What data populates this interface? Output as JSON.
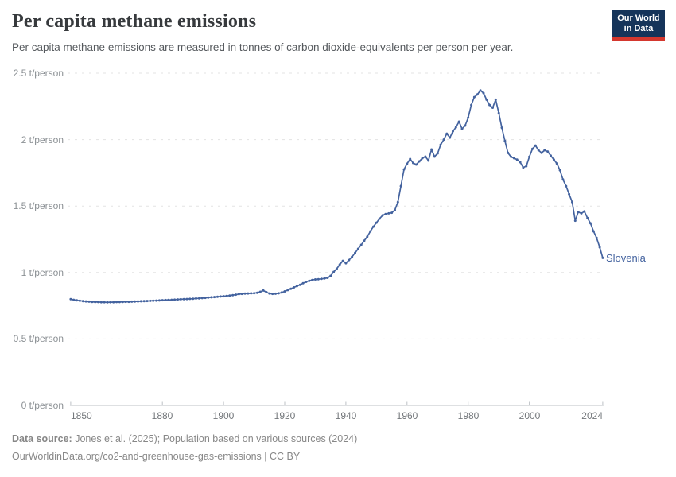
{
  "header": {
    "title": "Per capita methane emissions",
    "subtitle": "Per capita methane emissions are measured in tonnes of carbon dioxide-equivalents per person per year.",
    "logo": {
      "line1": "Our World",
      "line2": "in Data"
    }
  },
  "chart_data": {
    "type": "line",
    "title": "Per capita methane emissions",
    "unit": "t/person",
    "x_start": 1850,
    "x_end": 2024,
    "xlim": [
      1850,
      2024
    ],
    "ylim": [
      0,
      2.5
    ],
    "grid": "horizontal-dashed",
    "legend_position": "end-of-line-label",
    "y_ticks": [
      {
        "value": 0,
        "label": "0 t/person"
      },
      {
        "value": 0.5,
        "label": "0.5 t/person"
      },
      {
        "value": 1,
        "label": "1 t/person"
      },
      {
        "value": 1.5,
        "label": "1.5 t/person"
      },
      {
        "value": 2,
        "label": "2 t/person"
      },
      {
        "value": 2.5,
        "label": "2.5 t/person"
      }
    ],
    "x_ticks": [
      {
        "value": 1850,
        "label": "1850"
      },
      {
        "value": 1880,
        "label": "1880"
      },
      {
        "value": 1900,
        "label": "1900"
      },
      {
        "value": 1920,
        "label": "1920"
      },
      {
        "value": 1940,
        "label": "1940"
      },
      {
        "value": 1960,
        "label": "1960"
      },
      {
        "value": 1980,
        "label": "1980"
      },
      {
        "value": 2000,
        "label": "2000"
      },
      {
        "value": 2024,
        "label": "2024"
      }
    ],
    "series": [
      {
        "name": "Slovenia",
        "color": "#44639f",
        "values": [
          0.8,
          0.795,
          0.791,
          0.788,
          0.785,
          0.783,
          0.781,
          0.779,
          0.778,
          0.778,
          0.777,
          0.777,
          0.776,
          0.777,
          0.777,
          0.778,
          0.778,
          0.779,
          0.78,
          0.78,
          0.781,
          0.782,
          0.783,
          0.784,
          0.785,
          0.786,
          0.787,
          0.788,
          0.789,
          0.79,
          0.792,
          0.793,
          0.794,
          0.795,
          0.796,
          0.798,
          0.799,
          0.8,
          0.801,
          0.802,
          0.803,
          0.805,
          0.806,
          0.808,
          0.81,
          0.812,
          0.814,
          0.816,
          0.818,
          0.82,
          0.822,
          0.824,
          0.827,
          0.83,
          0.834,
          0.838,
          0.84,
          0.842,
          0.843,
          0.844,
          0.845,
          0.848,
          0.855,
          0.865,
          0.852,
          0.843,
          0.84,
          0.841,
          0.844,
          0.85,
          0.858,
          0.868,
          0.878,
          0.888,
          0.898,
          0.908,
          0.92,
          0.93,
          0.938,
          0.944,
          0.948,
          0.95,
          0.952,
          0.955,
          0.96,
          0.975,
          1.005,
          1.028,
          1.06,
          1.088,
          1.07,
          1.094,
          1.118,
          1.148,
          1.178,
          1.208,
          1.24,
          1.27,
          1.31,
          1.345,
          1.375,
          1.405,
          1.43,
          1.44,
          1.445,
          1.45,
          1.47,
          1.53,
          1.65,
          1.776,
          1.818,
          1.854,
          1.824,
          1.812,
          1.836,
          1.86,
          1.872,
          1.842,
          1.926,
          1.872,
          1.896,
          1.962,
          2.0,
          2.045,
          2.015,
          2.063,
          2.093,
          2.135,
          2.081,
          2.105,
          2.165,
          2.26,
          2.32,
          2.34,
          2.37,
          2.35,
          2.3,
          2.26,
          2.24,
          2.3,
          2.2,
          2.09,
          1.99,
          1.9,
          1.87,
          1.86,
          1.85,
          1.83,
          1.79,
          1.8,
          1.87,
          1.93,
          1.955,
          1.92,
          1.9,
          1.92,
          1.91,
          1.88,
          1.85,
          1.82,
          1.77,
          1.7,
          1.65,
          1.59,
          1.53,
          1.39,
          1.455,
          1.445,
          1.46,
          1.41,
          1.37,
          1.31,
          1.26,
          1.19,
          1.11
        ]
      }
    ]
  },
  "footer": {
    "source_label": "Data source:",
    "source_text": "Jones et al. (2025); Population based on various sources (2024)",
    "citation": "OurWorldinData.org/co2-and-greenhouse-gas-emissions | CC BY"
  },
  "colors": {
    "line": "#44639f",
    "grid": "#e3e3e3",
    "axis": "#bdc2c6",
    "logo_navy": "#15345a",
    "logo_red": "#d4372e"
  }
}
